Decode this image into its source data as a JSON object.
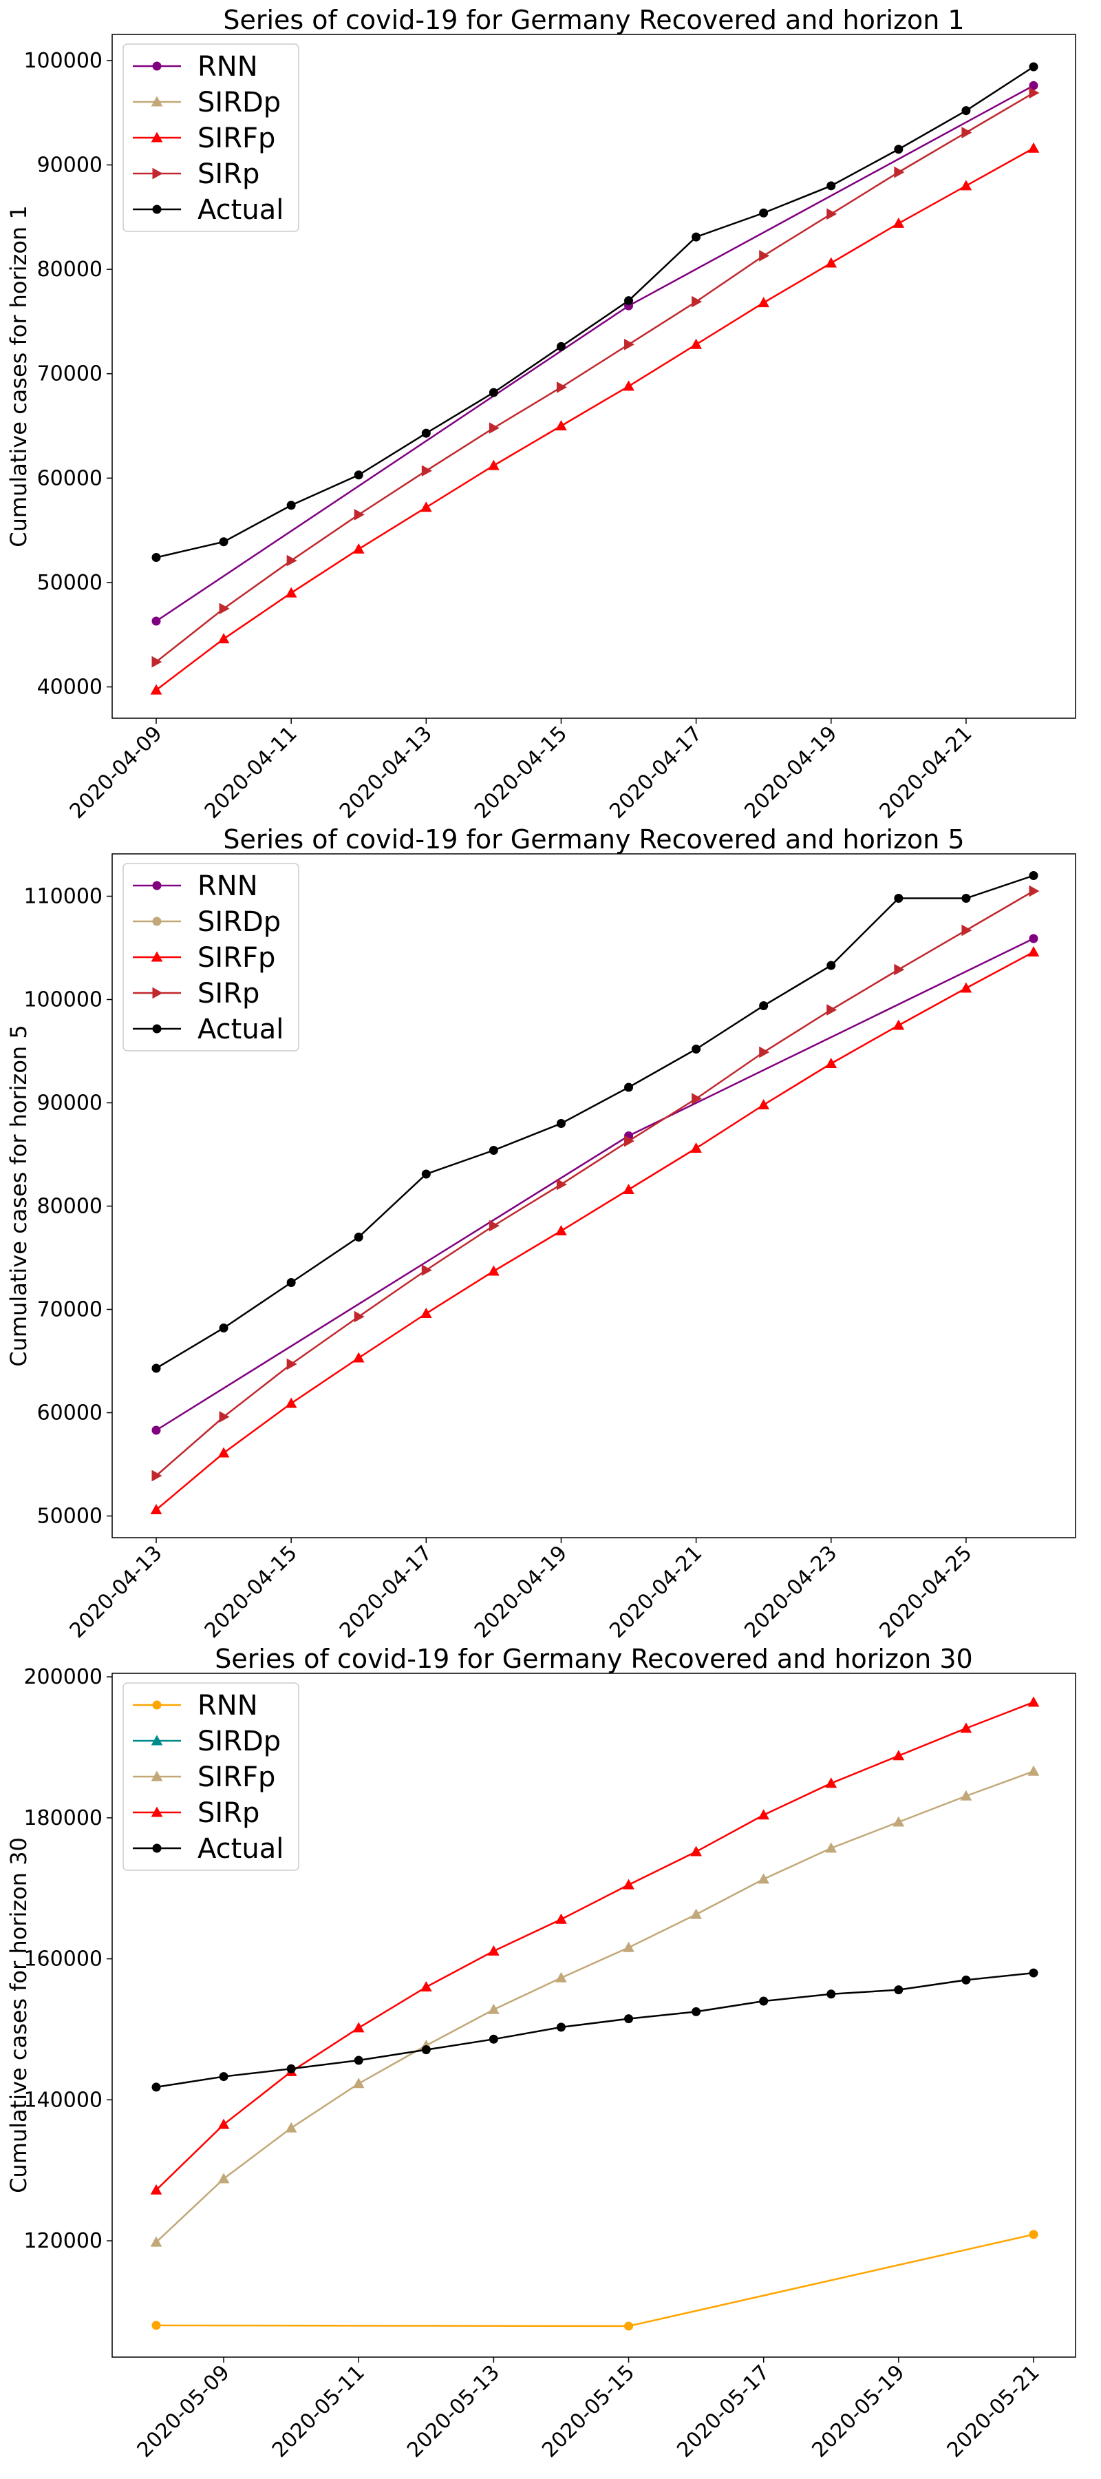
{
  "chart_data": [
    {
      "type": "line",
      "title": "Series of covid-19 for Germany Recovered and horizon 1",
      "xlabel": "",
      "ylabel": "Cumulative cases for horizon 1",
      "x": [
        "2020-04-09",
        "2020-04-10",
        "2020-04-11",
        "2020-04-12",
        "2020-04-13",
        "2020-04-14",
        "2020-04-15",
        "2020-04-16",
        "2020-04-17",
        "2020-04-18",
        "2020-04-19",
        "2020-04-20",
        "2020-04-21",
        "2020-04-22"
      ],
      "x_tick_labels": [
        "2020-04-09",
        "2020-04-11",
        "2020-04-13",
        "2020-04-15",
        "2020-04-17",
        "2020-04-19",
        "2020-04-21"
      ],
      "ylim": [
        37000,
        102500
      ],
      "y_ticks": [
        40000,
        50000,
        60000,
        70000,
        80000,
        90000,
        100000
      ],
      "grid": false,
      "legend": "upper-left",
      "series": [
        {
          "name": "RNN",
          "color": "#800080",
          "marker": "circle",
          "values": [
            46300,
            null,
            null,
            null,
            null,
            null,
            null,
            76500,
            null,
            null,
            null,
            null,
            null,
            97600
          ]
        },
        {
          "name": "SIRDp",
          "color": "#c2a878",
          "marker": "triangle-up",
          "values": [
            null,
            null,
            null,
            null,
            null,
            null,
            null,
            null,
            null,
            null,
            null,
            null,
            null,
            null
          ]
        },
        {
          "name": "SIRFp",
          "color": "#ff0000",
          "marker": "triangle-up",
          "values": [
            39700,
            44600,
            49000,
            53200,
            57200,
            61200,
            65000,
            68800,
            72800,
            76800,
            80600,
            84400,
            88000,
            91600
          ]
        },
        {
          "name": "SIRp",
          "color": "#c0282d",
          "marker": "triangle-right",
          "values": [
            42400,
            47500,
            52100,
            56500,
            60700,
            64800,
            68700,
            72800,
            76900,
            81300,
            85300,
            89300,
            93100,
            96900
          ]
        },
        {
          "name": "Actual",
          "color": "#000000",
          "marker": "circle",
          "values": [
            52400,
            53900,
            57400,
            60300,
            64300,
            68200,
            72600,
            77000,
            83100,
            85400,
            88000,
            91500,
            95200,
            99400
          ]
        }
      ]
    },
    {
      "type": "line",
      "title": "Series of covid-19 for Germany Recovered and horizon 5",
      "xlabel": "",
      "ylabel": "Cumulative cases for horizon 5",
      "x": [
        "2020-04-13",
        "2020-04-14",
        "2020-04-15",
        "2020-04-16",
        "2020-04-17",
        "2020-04-18",
        "2020-04-19",
        "2020-04-20",
        "2020-04-21",
        "2020-04-22",
        "2020-04-23",
        "2020-04-24",
        "2020-04-25",
        "2020-04-26"
      ],
      "x_tick_labels": [
        "2020-04-13",
        "2020-04-15",
        "2020-04-17",
        "2020-04-19",
        "2020-04-21",
        "2020-04-23",
        "2020-04-25"
      ],
      "ylim": [
        47900,
        114100
      ],
      "y_ticks": [
        50000,
        60000,
        70000,
        80000,
        90000,
        100000,
        110000
      ],
      "grid": false,
      "legend": "upper-left",
      "series": [
        {
          "name": "RNN",
          "color": "#800080",
          "marker": "circle",
          "values": [
            58300,
            null,
            null,
            null,
            null,
            null,
            null,
            86800,
            null,
            null,
            null,
            null,
            null,
            105900
          ]
        },
        {
          "name": "SIRDp",
          "color": "#c2a878",
          "marker": "circle",
          "values": [
            null,
            null,
            null,
            null,
            null,
            null,
            null,
            null,
            null,
            null,
            null,
            null,
            null,
            null
          ]
        },
        {
          "name": "SIRFp",
          "color": "#ff0000",
          "marker": "triangle-up",
          "values": [
            50600,
            56100,
            60900,
            65300,
            69600,
            73700,
            77600,
            81600,
            85600,
            89800,
            93800,
            97500,
            101100,
            104600
          ]
        },
        {
          "name": "SIRp",
          "color": "#c0282d",
          "marker": "triangle-right",
          "values": [
            53900,
            59600,
            64700,
            69300,
            73800,
            78100,
            82100,
            86300,
            90400,
            94900,
            99000,
            102900,
            106700,
            110500
          ]
        },
        {
          "name": "Actual",
          "color": "#000000",
          "marker": "circle",
          "values": [
            64300,
            68200,
            72600,
            77000,
            83100,
            85400,
            88000,
            91500,
            95200,
            99400,
            103300,
            109800,
            109800,
            112000
          ]
        }
      ]
    },
    {
      "type": "line",
      "title": "Series of covid-19 for Germany Recovered and horizon 30",
      "xlabel": "",
      "ylabel": "Cumulative cases for horizon 30",
      "x": [
        "2020-05-08",
        "2020-05-09",
        "2020-05-10",
        "2020-05-11",
        "2020-05-12",
        "2020-05-13",
        "2020-05-14",
        "2020-05-15",
        "2020-05-16",
        "2020-05-17",
        "2020-05-18",
        "2020-05-19",
        "2020-05-20",
        "2020-05-21"
      ],
      "x_tick_labels": [
        "2020-05-09",
        "2020-05-11",
        "2020-05-13",
        "2020-05-15",
        "2020-05-17",
        "2020-05-19",
        "2020-05-21"
      ],
      "ylim": [
        103500,
        200500
      ],
      "y_ticks": [
        120000,
        140000,
        160000,
        180000,
        200000
      ],
      "grid": false,
      "legend": "upper-left",
      "series": [
        {
          "name": "RNN",
          "color": "#ffa500",
          "marker": "circle",
          "values": [
            108000,
            null,
            null,
            null,
            null,
            null,
            null,
            107900,
            null,
            null,
            null,
            null,
            null,
            120900
          ]
        },
        {
          "name": "SIRDp",
          "color": "#008b8b",
          "marker": "triangle-up",
          "values": [
            null,
            null,
            null,
            null,
            null,
            null,
            null,
            null,
            null,
            null,
            null,
            null,
            null,
            null
          ]
        },
        {
          "name": "SIRFp",
          "color": "#c2a878",
          "marker": "triangle-up",
          "values": [
            119800,
            128800,
            136000,
            142300,
            147700,
            152800,
            157300,
            161600,
            166300,
            171300,
            175700,
            179400,
            183100,
            186600
          ]
        },
        {
          "name": "SIRp",
          "color": "#ff0000",
          "marker": "triangle-up",
          "values": [
            127200,
            136500,
            144000,
            150200,
            156000,
            161100,
            165600,
            170500,
            175200,
            180400,
            184900,
            188800,
            192700,
            196400
          ]
        },
        {
          "name": "Actual",
          "color": "#000000",
          "marker": "circle",
          "values": [
            141800,
            143300,
            144400,
            145600,
            147100,
            148600,
            150300,
            151500,
            152500,
            154000,
            155000,
            155600,
            157000,
            158000
          ]
        }
      ]
    }
  ]
}
